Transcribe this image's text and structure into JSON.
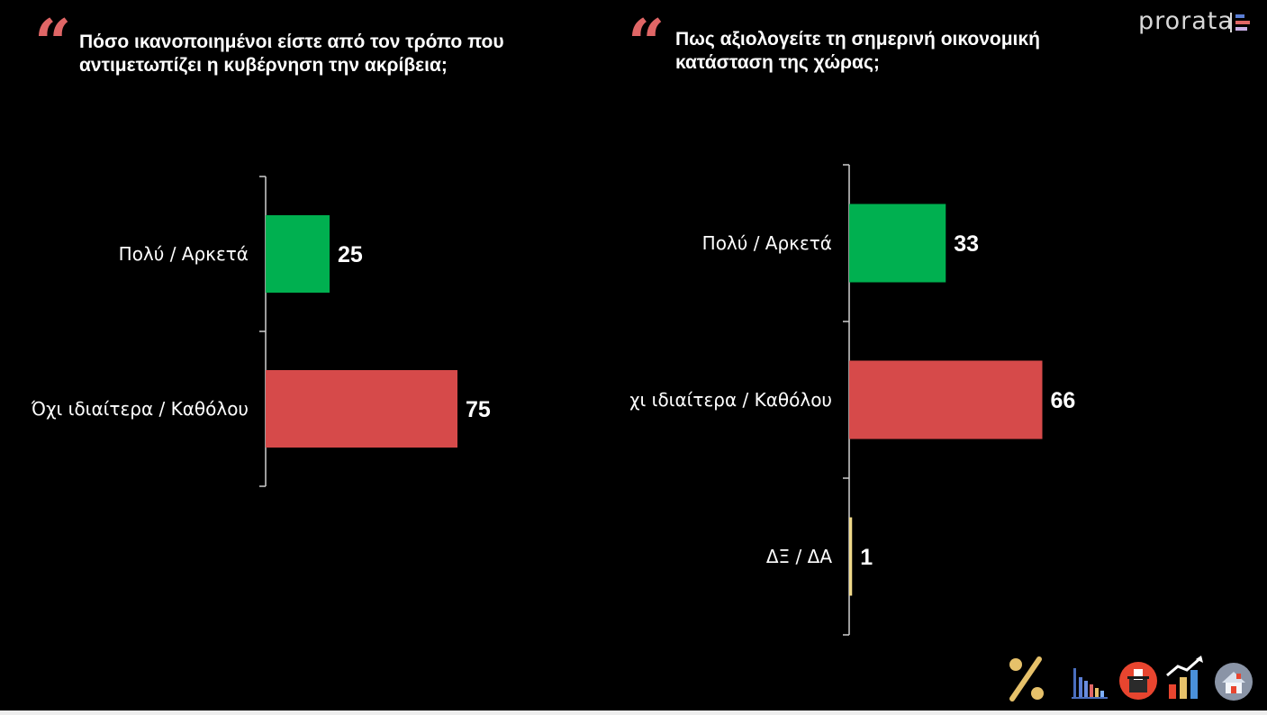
{
  "brand": {
    "name": "prorata"
  },
  "colors": {
    "positive": "#00b050",
    "negative": "#d64a4a",
    "neutral": "#f0d98a",
    "quote": "#e06666",
    "axis": "#cfcfcf",
    "label": "#ffffff"
  },
  "chart_data": [
    {
      "type": "bar",
      "orientation": "horizontal",
      "title": "Πόσο ικανοποιημένοι είστε από τον τρόπο που\nαντιμετωπίζει η κυβέρνηση την ακρίβεια;",
      "categories": [
        "Πολύ / Αρκετά",
        "Όχι ιδιαίτερα / Καθόλου"
      ],
      "values": [
        25,
        75
      ],
      "value_labels": [
        "25",
        "75"
      ],
      "colors": [
        "#00b050",
        "#d64a4a"
      ],
      "xlim": [
        0,
        100
      ]
    },
    {
      "type": "bar",
      "orientation": "horizontal",
      "title": "Πως αξιολογείτε τη σημερινή οικονομική\nκατάσταση της χώρας;",
      "categories": [
        "Πολύ / Αρκετά",
        "Όχι ιδιαίτερα / Καθόλου",
        "ΔΞ / ΔΑ"
      ],
      "values": [
        33,
        66,
        1
      ],
      "value_labels": [
        "33",
        "66",
        "1"
      ],
      "colors": [
        "#00b050",
        "#d64a4a",
        "#f0d98a"
      ],
      "xlim": [
        0,
        100
      ]
    }
  ],
  "footer_icons": [
    "percent-icon",
    "bar-chart-icon",
    "ballot-box-icon",
    "growth-chart-icon",
    "house-icon"
  ]
}
